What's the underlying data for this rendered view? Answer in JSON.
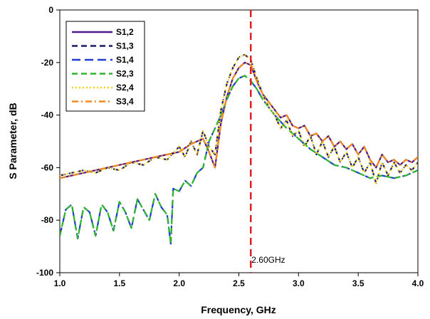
{
  "chart_data": {
    "type": "line",
    "title": "",
    "xlabel": "Frequency, GHz",
    "ylabel": "S Parameter, dB",
    "xlim": [
      1.0,
      4.0
    ],
    "ylim": [
      -100,
      0
    ],
    "xticks": [
      "1.0",
      "1.5",
      "2.0",
      "2.5",
      "3.0",
      "3.5",
      "4.0"
    ],
    "yticks": [
      "0",
      "-20",
      "-40",
      "-60",
      "-80",
      "-100"
    ],
    "grid": false,
    "legend_position": "top-left",
    "marker_line": {
      "x": 2.6,
      "label": "2.60GHz",
      "color": "#e02020"
    },
    "series": [
      {
        "name": "S1,2",
        "color": "#4b1c8c",
        "style": "solid",
        "x": [
          1.0,
          1.1,
          1.2,
          1.3,
          1.4,
          1.5,
          1.6,
          1.7,
          1.8,
          1.9,
          2.0,
          2.1,
          2.2,
          2.25,
          2.3,
          2.35,
          2.4,
          2.45,
          2.5,
          2.55,
          2.6,
          2.65,
          2.7,
          2.75,
          2.8,
          2.85,
          2.9,
          2.95,
          3.0,
          3.05,
          3.1,
          3.15,
          3.2,
          3.25,
          3.3,
          3.35,
          3.4,
          3.45,
          3.5,
          3.55,
          3.6,
          3.65,
          3.7,
          3.75,
          3.8,
          3.85,
          3.9,
          3.95,
          4.0
        ],
        "y": [
          -64,
          -63,
          -62,
          -61,
          -60,
          -59,
          -58,
          -57,
          -56,
          -55,
          -54,
          -51,
          -49,
          -54,
          -60,
          -43,
          -33,
          -26,
          -22,
          -20,
          -21,
          -27,
          -32,
          -35,
          -38,
          -41,
          -40,
          -44,
          -45,
          -44,
          -48,
          -47,
          -50,
          -48,
          -52,
          -50,
          -53,
          -51,
          -55,
          -52,
          -57,
          -60,
          -55,
          -58,
          -57,
          -59,
          -57,
          -58,
          -56
        ]
      },
      {
        "name": "S1,3",
        "color": "#1a1a6e",
        "style": "dashed",
        "x": [
          1.0,
          1.1,
          1.2,
          1.3,
          1.4,
          1.5,
          1.6,
          1.7,
          1.8,
          1.9,
          2.0,
          2.05,
          2.1,
          2.15,
          2.2,
          2.25,
          2.3,
          2.35,
          2.4,
          2.45,
          2.5,
          2.55,
          2.6,
          2.65,
          2.7,
          2.75,
          2.8,
          2.85,
          2.9,
          2.95,
          3.0,
          3.05,
          3.1,
          3.15,
          3.2,
          3.25,
          3.3,
          3.35,
          3.4,
          3.45,
          3.5,
          3.55,
          3.6,
          3.65,
          3.7,
          3.75,
          3.8,
          3.85,
          3.9,
          3.95,
          4.0
        ],
        "y": [
          -63,
          -62,
          -61,
          -62,
          -60,
          -61,
          -58,
          -59,
          -56,
          -57,
          -52,
          -56,
          -50,
          -55,
          -46,
          -52,
          -55,
          -38,
          -28,
          -22,
          -18,
          -17,
          -19,
          -26,
          -32,
          -37,
          -40,
          -45,
          -42,
          -48,
          -46,
          -52,
          -48,
          -55,
          -50,
          -56,
          -52,
          -58,
          -54,
          -60,
          -56,
          -62,
          -58,
          -66,
          -58,
          -63,
          -58,
          -62,
          -59,
          -61,
          -58
        ]
      },
      {
        "name": "S1,4",
        "color": "#1f3bd1",
        "style": "longdash",
        "x": [
          1.0,
          1.05,
          1.1,
          1.15,
          1.2,
          1.25,
          1.3,
          1.35,
          1.4,
          1.45,
          1.5,
          1.55,
          1.6,
          1.65,
          1.7,
          1.75,
          1.8,
          1.85,
          1.9,
          1.93,
          1.95,
          2.0,
          2.05,
          2.1,
          2.15,
          2.2,
          2.25,
          2.3,
          2.35,
          2.4,
          2.45,
          2.5,
          2.55,
          2.6,
          2.65,
          2.7,
          2.8,
          2.9,
          3.0,
          3.1,
          3.2,
          3.3,
          3.4,
          3.5,
          3.6,
          3.7,
          3.8,
          3.9,
          4.0
        ],
        "y": [
          -86,
          -76,
          -74,
          -87,
          -75,
          -77,
          -86,
          -74,
          -77,
          -84,
          -73,
          -77,
          -83,
          -72,
          -76,
          -80,
          -70,
          -75,
          -78,
          -89,
          -68,
          -69,
          -65,
          -67,
          -62,
          -60,
          -50,
          -45,
          -40,
          -34,
          -29,
          -26,
          -25,
          -27,
          -30,
          -34,
          -40,
          -45,
          -49,
          -53,
          -56,
          -59,
          -60,
          -62,
          -64,
          -63,
          -64,
          -63,
          -61
        ]
      },
      {
        "name": "S2,3",
        "color": "#2db52d",
        "style": "dashed",
        "x": [
          1.0,
          1.05,
          1.1,
          1.15,
          1.2,
          1.25,
          1.3,
          1.35,
          1.4,
          1.45,
          1.5,
          1.55,
          1.6,
          1.65,
          1.7,
          1.75,
          1.8,
          1.85,
          1.9,
          1.93,
          1.95,
          2.0,
          2.05,
          2.1,
          2.15,
          2.2,
          2.25,
          2.3,
          2.35,
          2.4,
          2.45,
          2.5,
          2.55,
          2.6,
          2.65,
          2.7,
          2.8,
          2.9,
          3.0,
          3.1,
          3.2,
          3.3,
          3.4,
          3.5,
          3.6,
          3.7,
          3.8,
          3.9,
          4.0
        ],
        "y": [
          -86,
          -76,
          -74,
          -87,
          -75,
          -77,
          -86,
          -74,
          -77,
          -84,
          -73,
          -77,
          -83,
          -72,
          -76,
          -80,
          -70,
          -75,
          -78,
          -89,
          -68,
          -69,
          -65,
          -67,
          -62,
          -60,
          -50,
          -45,
          -40,
          -34,
          -29,
          -26,
          -25,
          -27,
          -30,
          -34,
          -40,
          -45,
          -49,
          -53,
          -56,
          -59,
          -60,
          -62,
          -64,
          -63,
          -64,
          -63,
          -61
        ]
      },
      {
        "name": "S2,4",
        "color": "#f2d21a",
        "style": "dotted",
        "x": [
          1.0,
          1.1,
          1.2,
          1.3,
          1.4,
          1.5,
          1.6,
          1.7,
          1.8,
          1.9,
          2.0,
          2.05,
          2.1,
          2.15,
          2.2,
          2.25,
          2.3,
          2.35,
          2.4,
          2.45,
          2.5,
          2.55,
          2.6,
          2.65,
          2.7,
          2.75,
          2.8,
          2.85,
          2.9,
          2.95,
          3.0,
          3.05,
          3.1,
          3.15,
          3.2,
          3.25,
          3.3,
          3.35,
          3.4,
          3.45,
          3.5,
          3.55,
          3.6,
          3.65,
          3.7,
          3.75,
          3.8,
          3.85,
          3.9,
          3.95,
          4.0
        ],
        "y": [
          -63,
          -62,
          -61,
          -62,
          -60,
          -61,
          -58,
          -59,
          -56,
          -57,
          -52,
          -56,
          -50,
          -55,
          -46,
          -52,
          -55,
          -38,
          -28,
          -22,
          -18,
          -17,
          -19,
          -26,
          -32,
          -37,
          -40,
          -45,
          -42,
          -48,
          -46,
          -52,
          -48,
          -55,
          -50,
          -56,
          -52,
          -58,
          -54,
          -60,
          -56,
          -62,
          -58,
          -66,
          -58,
          -63,
          -58,
          -62,
          -59,
          -61,
          -58
        ]
      },
      {
        "name": "S3,4",
        "color": "#f28a1e",
        "style": "dashdot",
        "x": [
          1.0,
          1.1,
          1.2,
          1.3,
          1.4,
          1.5,
          1.6,
          1.7,
          1.8,
          1.9,
          2.0,
          2.1,
          2.2,
          2.25,
          2.3,
          2.35,
          2.4,
          2.45,
          2.5,
          2.55,
          2.6,
          2.65,
          2.7,
          2.75,
          2.8,
          2.85,
          2.9,
          2.95,
          3.0,
          3.05,
          3.1,
          3.15,
          3.2,
          3.25,
          3.3,
          3.35,
          3.4,
          3.45,
          3.5,
          3.55,
          3.6,
          3.65,
          3.7,
          3.75,
          3.8,
          3.85,
          3.9,
          3.95,
          4.0
        ],
        "y": [
          -64,
          -63,
          -62,
          -61,
          -60,
          -59,
          -58,
          -57,
          -56,
          -55,
          -54,
          -51,
          -49,
          -54,
          -60,
          -43,
          -33,
          -26,
          -22,
          -20,
          -21,
          -27,
          -32,
          -35,
          -38,
          -41,
          -40,
          -44,
          -45,
          -44,
          -48,
          -47,
          -50,
          -48,
          -52,
          -50,
          -53,
          -51,
          -55,
          -52,
          -57,
          -60,
          -55,
          -58,
          -57,
          -59,
          -57,
          -58,
          -56
        ]
      }
    ]
  }
}
